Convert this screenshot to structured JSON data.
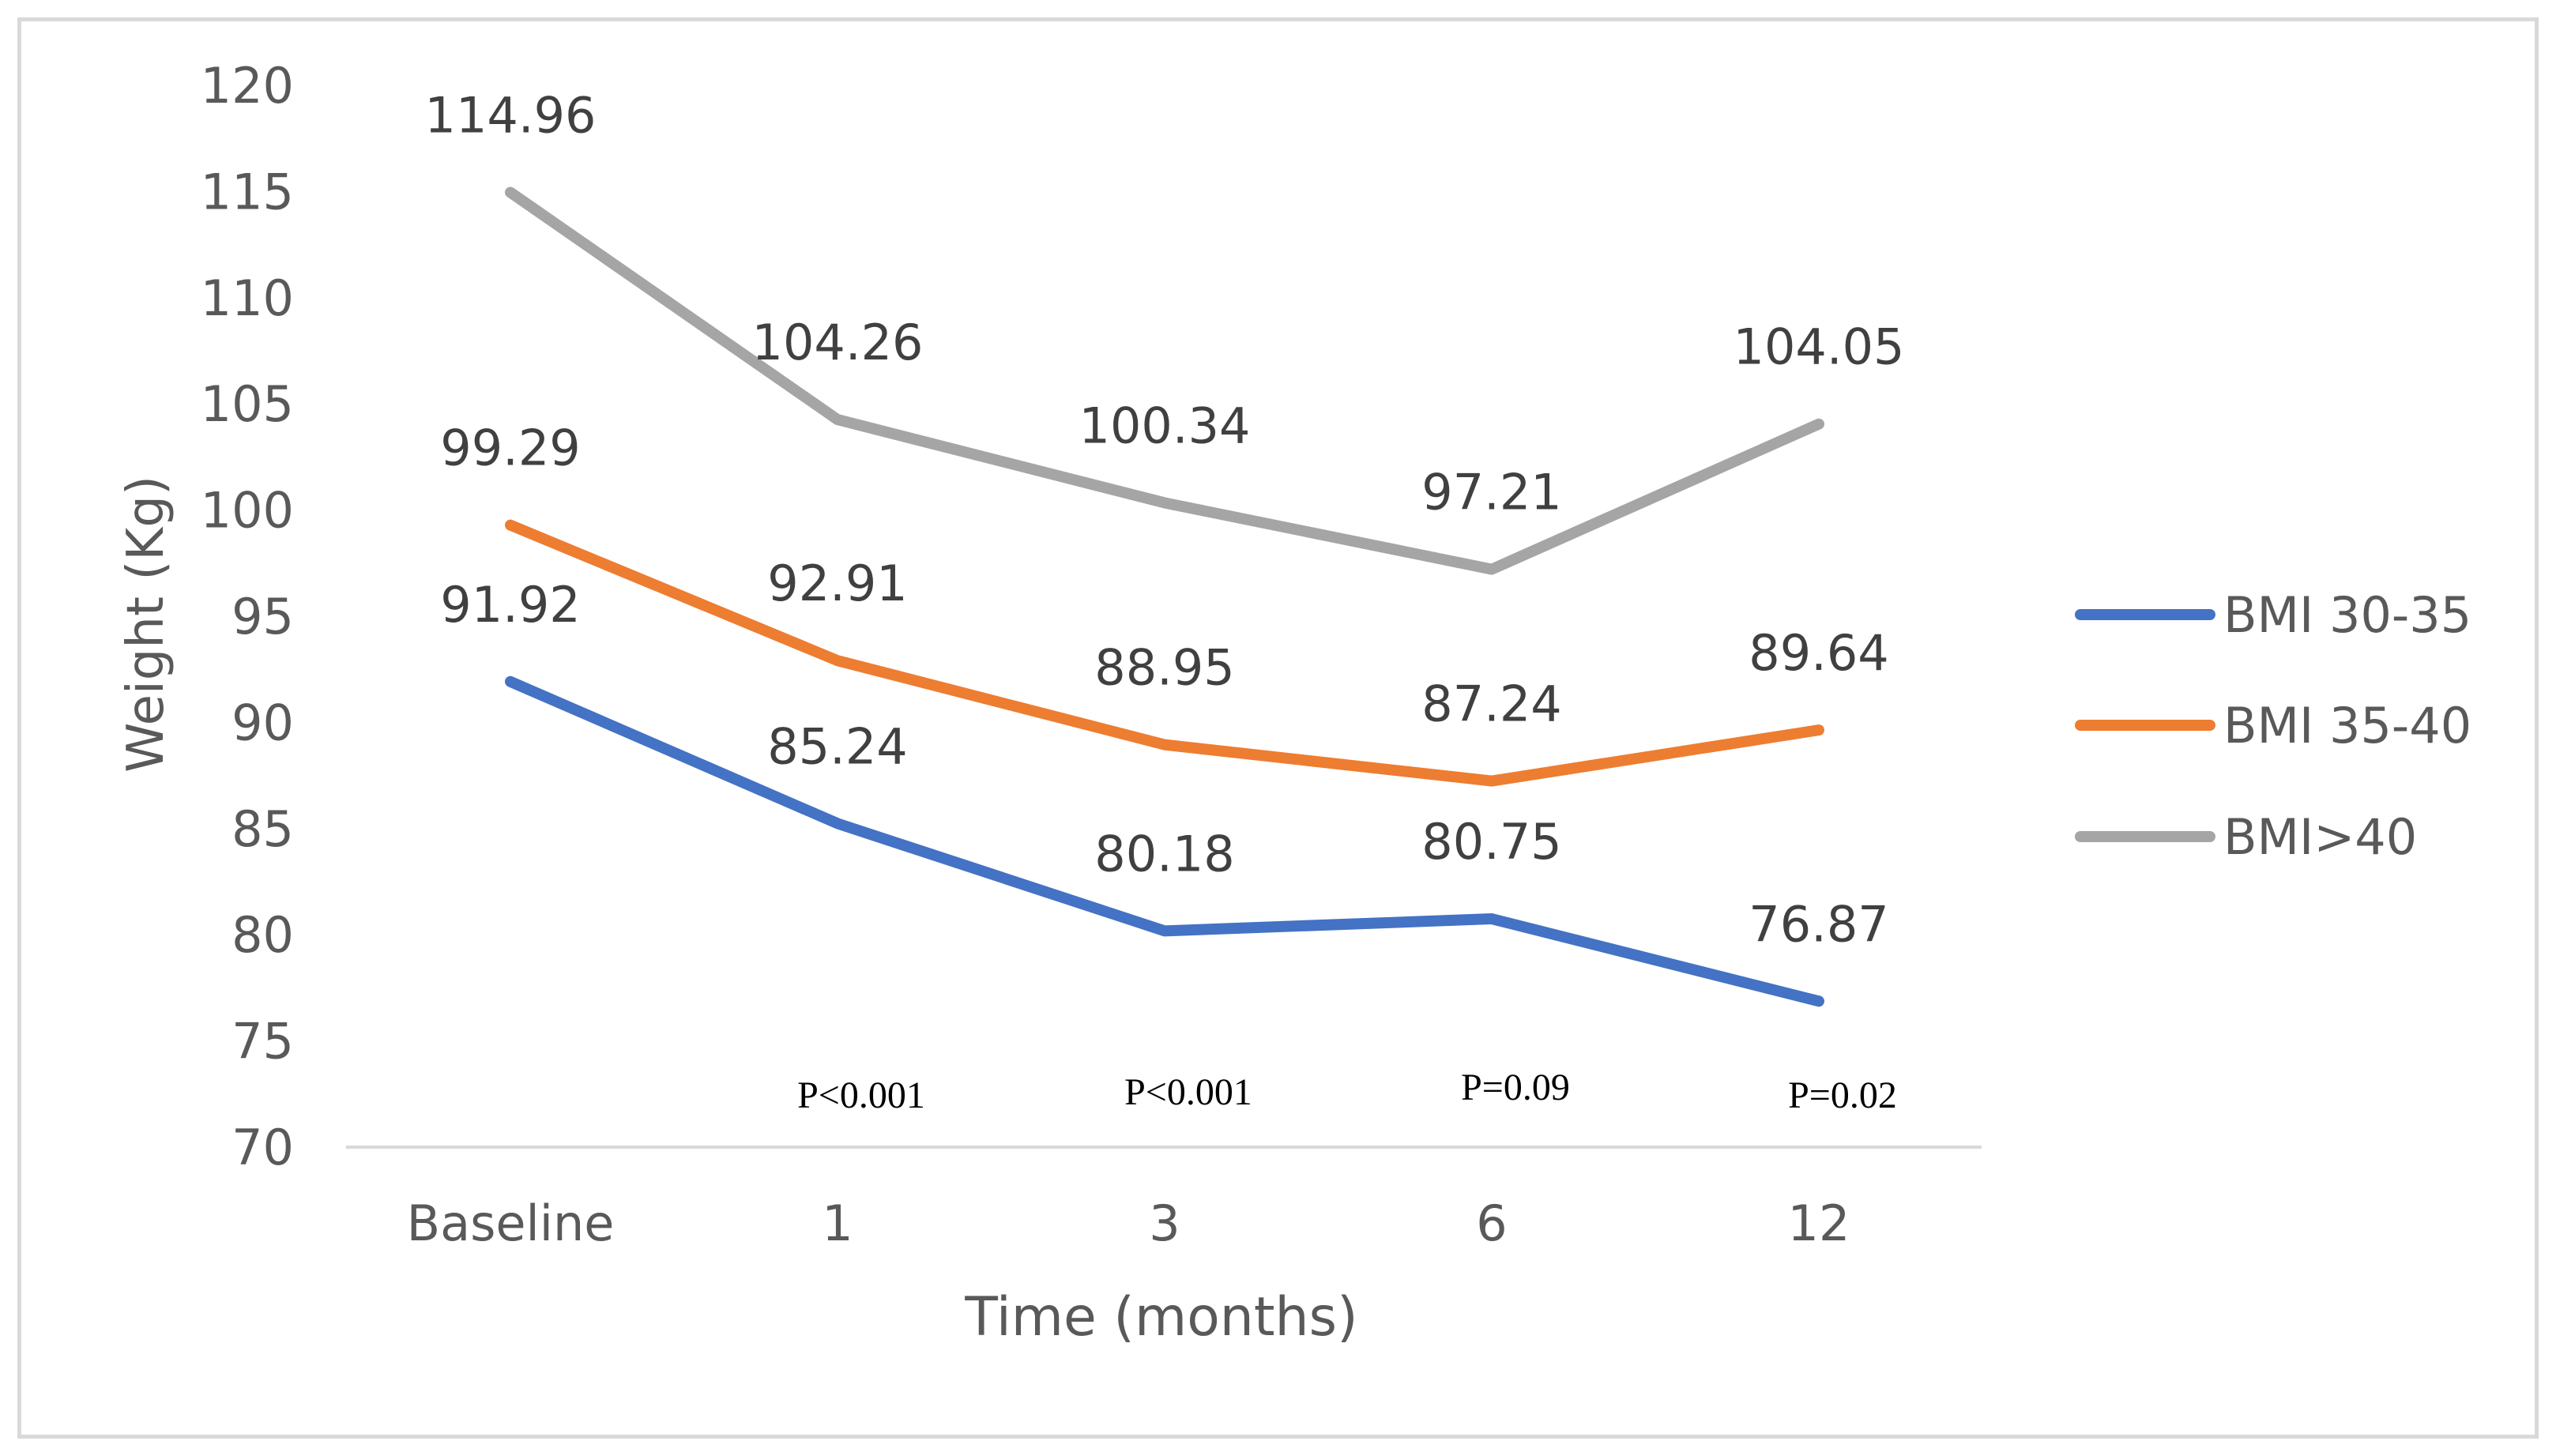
{
  "chart_data": {
    "type": "line",
    "title": "",
    "xlabel": "Time (months)",
    "ylabel": "Weight (Kg)",
    "categories": [
      "Baseline",
      "1",
      "3",
      "6",
      "12"
    ],
    "ylim": [
      70,
      120
    ],
    "yticks": [
      70,
      75,
      80,
      85,
      90,
      95,
      100,
      105,
      110,
      115,
      120
    ],
    "grid": false,
    "legend_position": "right",
    "series": [
      {
        "name": "BMI 30-35",
        "color": "#4472c4",
        "values": [
          91.92,
          85.24,
          80.18,
          80.75,
          76.87
        ],
        "labels": [
          "91.92",
          "85.24",
          "80.18",
          "80.75",
          "76.87"
        ]
      },
      {
        "name": "BMI 35-40",
        "color": "#ed7d31",
        "values": [
          99.29,
          92.91,
          88.95,
          87.24,
          89.64
        ],
        "labels": [
          "99.29",
          "92.91",
          "88.95",
          "87.24",
          "89.64"
        ]
      },
      {
        "name": "BMI>40",
        "color": "#a5a5a5",
        "values": [
          114.96,
          104.26,
          100.34,
          97.21,
          104.05
        ],
        "labels": [
          "114.96",
          "104.26",
          "100.34",
          "97.21",
          "104.05"
        ]
      }
    ],
    "annotations": [
      "",
      "P<0.001",
      "P<0.001",
      "P=0.09",
      "P=0.02"
    ]
  }
}
